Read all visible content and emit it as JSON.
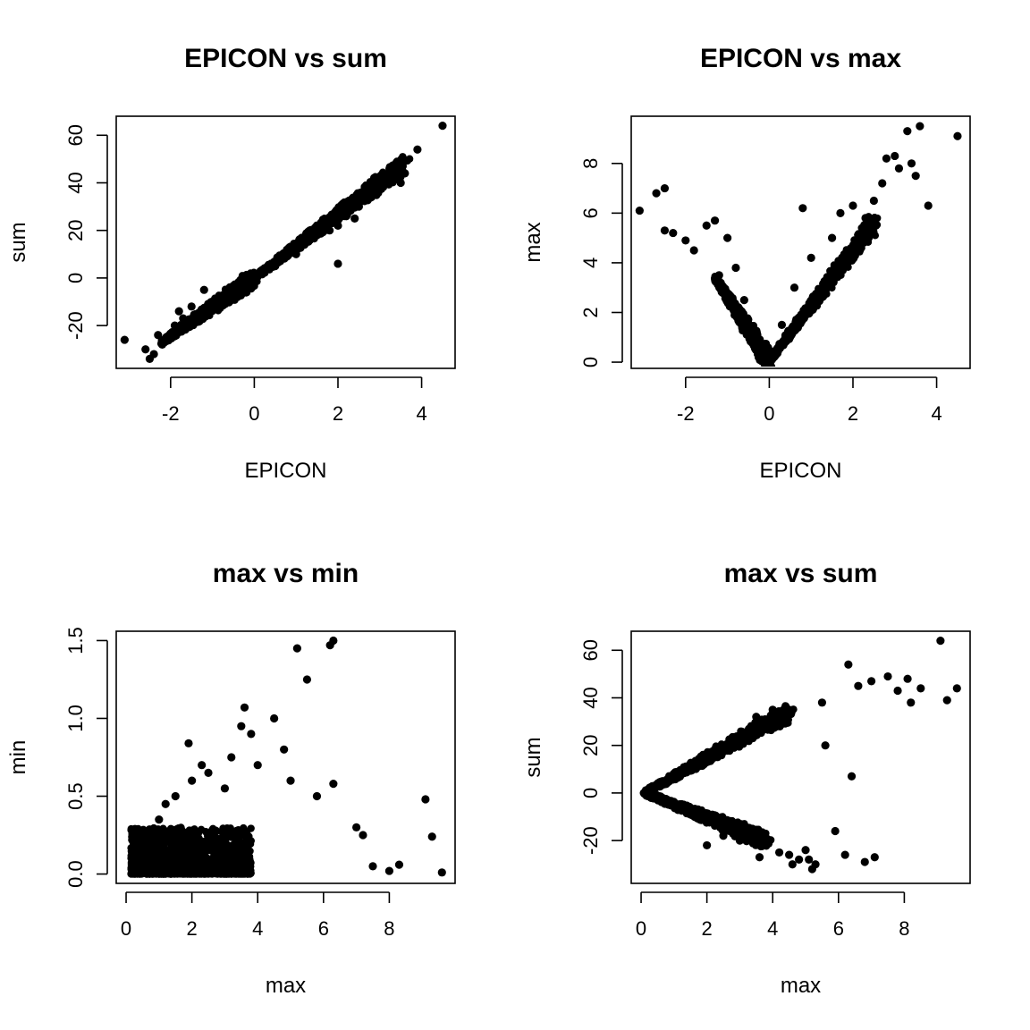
{
  "chart_data": [
    {
      "type": "scatter",
      "title": "EPICON vs sum",
      "xlabel": "EPICON",
      "ylabel": "sum",
      "xlim": [
        -3.3,
        4.8
      ],
      "ylim": [
        -38,
        68
      ],
      "xticks": [
        -2,
        0,
        2,
        4
      ],
      "yticks": [
        -20,
        0,
        20,
        40,
        60
      ],
      "xtick_labels": [
        "-2",
        "0",
        "2",
        "4"
      ],
      "ytick_labels": [
        "-20",
        "0",
        "20",
        "40",
        "60"
      ],
      "grid": false,
      "points": [
        [
          -3.1,
          -26
        ],
        [
          -2.6,
          -30
        ],
        [
          -2.5,
          -34
        ],
        [
          -2.4,
          -32
        ],
        [
          -2.3,
          -24
        ],
        [
          -2.2,
          -28
        ],
        [
          -2.1,
          -26
        ],
        [
          -2.0,
          -25
        ],
        [
          -1.9,
          -20
        ],
        [
          -1.8,
          -14
        ],
        [
          -1.7,
          -17
        ],
        [
          -1.6,
          -20
        ],
        [
          -1.5,
          -12
        ],
        [
          -1.4,
          -18
        ],
        [
          -1.3,
          -16
        ],
        [
          -1.2,
          -5
        ],
        [
          -1.0,
          -10
        ],
        [
          -0.8,
          -8
        ],
        [
          -0.5,
          -5
        ],
        [
          -0.2,
          -2
        ],
        [
          0,
          0
        ],
        [
          0.5,
          5
        ],
        [
          1,
          10
        ],
        [
          1.2,
          14
        ],
        [
          1.5,
          18
        ],
        [
          1.8,
          20
        ],
        [
          2.0,
          22
        ],
        [
          2.0,
          6
        ],
        [
          2.2,
          26
        ],
        [
          2.5,
          30
        ],
        [
          2.4,
          25
        ],
        [
          2.8,
          34
        ],
        [
          3.0,
          38
        ],
        [
          3.1,
          42
        ],
        [
          3.3,
          44
        ],
        [
          3.4,
          47
        ],
        [
          3.5,
          48
        ],
        [
          3.5,
          40
        ],
        [
          3.6,
          44
        ],
        [
          3.9,
          54
        ],
        [
          4.5,
          64
        ]
      ],
      "trend_segments": [
        [
          [
            -2.2,
            -27
          ],
          [
            0,
            0
          ]
        ],
        [
          [
            0,
            0
          ],
          [
            3.6,
            48
          ]
        ]
      ]
    },
    {
      "type": "scatter",
      "title": "EPICON vs max",
      "xlabel": "EPICON",
      "ylabel": "max",
      "xlim": [
        -3.3,
        4.8
      ],
      "ylim": [
        -0.25,
        9.9
      ],
      "xticks": [
        -2,
        0,
        2,
        4
      ],
      "yticks": [
        0,
        2,
        4,
        6,
        8
      ],
      "xtick_labels": [
        "-2",
        "0",
        "2",
        "4"
      ],
      "ytick_labels": [
        "0",
        "2",
        "4",
        "6",
        "8"
      ],
      "grid": false,
      "points": [
        [
          -3.1,
          6.1
        ],
        [
          -2.7,
          6.8
        ],
        [
          -2.5,
          7.0
        ],
        [
          -2.5,
          5.3
        ],
        [
          -2.3,
          5.2
        ],
        [
          -2.0,
          4.9
        ],
        [
          -1.8,
          4.5
        ],
        [
          -1.5,
          5.5
        ],
        [
          -1.3,
          5.7
        ],
        [
          -1.0,
          5.0
        ],
        [
          -1.2,
          3.5
        ],
        [
          -0.8,
          3.8
        ],
        [
          -0.6,
          2.5
        ],
        [
          -0.3,
          1.2
        ],
        [
          0,
          0.1
        ],
        [
          0.3,
          1.5
        ],
        [
          0.6,
          3.0
        ],
        [
          0.8,
          6.2
        ],
        [
          1.0,
          4.2
        ],
        [
          1.5,
          5.0
        ],
        [
          1.7,
          6.0
        ],
        [
          2.0,
          6.3
        ],
        [
          2.3,
          5.8
        ],
        [
          2.5,
          6.5
        ],
        [
          2.7,
          7.2
        ],
        [
          2.8,
          8.2
        ],
        [
          3.0,
          8.3
        ],
        [
          3.1,
          7.8
        ],
        [
          3.3,
          9.3
        ],
        [
          3.4,
          8.0
        ],
        [
          3.6,
          9.5
        ],
        [
          3.5,
          7.5
        ],
        [
          3.8,
          6.3
        ],
        [
          4.5,
          9.1
        ]
      ],
      "trend_segments": [
        [
          [
            -1.3,
            3.4
          ],
          [
            0,
            0.05
          ]
        ],
        [
          [
            0,
            0.05
          ],
          [
            2.5,
            5.6
          ]
        ]
      ]
    },
    {
      "type": "scatter",
      "title": "max vs min",
      "xlabel": "max",
      "ylabel": "min",
      "xlim": [
        -0.3,
        10.0
      ],
      "ylim": [
        -0.06,
        1.56
      ],
      "xticks": [
        0,
        2,
        4,
        6,
        8
      ],
      "yticks": [
        0.0,
        0.5,
        1.0,
        1.5
      ],
      "xtick_labels": [
        "0",
        "2",
        "4",
        "6",
        "8"
      ],
      "ytick_labels": [
        "0.0",
        "0.5",
        "1.0",
        "1.5"
      ],
      "grid": false,
      "points": [
        [
          0.3,
          0.02
        ],
        [
          0.8,
          0.2
        ],
        [
          1.0,
          0.35
        ],
        [
          1.2,
          0.45
        ],
        [
          1.5,
          0.5
        ],
        [
          1.9,
          0.84
        ],
        [
          2.0,
          0.6
        ],
        [
          2.3,
          0.7
        ],
        [
          2.5,
          0.65
        ],
        [
          3.0,
          0.55
        ],
        [
          3.2,
          0.75
        ],
        [
          3.5,
          0.95
        ],
        [
          3.6,
          1.07
        ],
        [
          3.8,
          0.9
        ],
        [
          4.0,
          0.7
        ],
        [
          4.5,
          1.0
        ],
        [
          4.8,
          0.8
        ],
        [
          5.0,
          0.6
        ],
        [
          5.2,
          1.45
        ],
        [
          5.5,
          1.25
        ],
        [
          5.8,
          0.5
        ],
        [
          6.2,
          1.47
        ],
        [
          6.3,
          1.5
        ],
        [
          6.3,
          0.58
        ],
        [
          7.0,
          0.3
        ],
        [
          7.2,
          0.25
        ],
        [
          7.5,
          0.05
        ],
        [
          8.0,
          0.02
        ],
        [
          8.3,
          0.06
        ],
        [
          9.1,
          0.48
        ],
        [
          9.3,
          0.24
        ],
        [
          9.6,
          0.01
        ]
      ],
      "dense_region": {
        "x": [
          0.15,
          3.8
        ],
        "y": [
          0.0,
          0.3
        ]
      }
    },
    {
      "type": "scatter",
      "title": "max vs sum",
      "xlabel": "max",
      "ylabel": "sum",
      "xlim": [
        -0.3,
        10.0
      ],
      "ylim": [
        -38,
        68
      ],
      "xticks": [
        0,
        2,
        4,
        6,
        8
      ],
      "yticks": [
        -20,
        0,
        20,
        40,
        60
      ],
      "xtick_labels": [
        "0",
        "2",
        "4",
        "6",
        "8"
      ],
      "ytick_labels": [
        "-20",
        "0",
        "20",
        "40",
        "60"
      ],
      "grid": false,
      "points": [
        [
          0.1,
          0
        ],
        [
          1.0,
          8
        ],
        [
          1.5,
          12
        ],
        [
          2.0,
          -22
        ],
        [
          2.5,
          -18
        ],
        [
          3.0,
          -20
        ],
        [
          3.2,
          22
        ],
        [
          3.5,
          32
        ],
        [
          3.6,
          -27
        ],
        [
          4.0,
          35
        ],
        [
          4.2,
          -25
        ],
        [
          4.5,
          -26
        ],
        [
          4.6,
          -30
        ],
        [
          4.8,
          -28
        ],
        [
          5.0,
          -24
        ],
        [
          5.1,
          -28
        ],
        [
          5.2,
          -32
        ],
        [
          5.3,
          -30
        ],
        [
          5.5,
          38
        ],
        [
          5.6,
          20
        ],
        [
          5.9,
          -16
        ],
        [
          6.2,
          -26
        ],
        [
          6.4,
          7
        ],
        [
          6.3,
          54
        ],
        [
          6.6,
          45
        ],
        [
          6.8,
          -29
        ],
        [
          7.1,
          -27
        ],
        [
          7.0,
          47
        ],
        [
          7.5,
          49
        ],
        [
          7.8,
          43
        ],
        [
          8.1,
          48
        ],
        [
          8.2,
          38
        ],
        [
          8.5,
          44
        ],
        [
          9.1,
          64
        ],
        [
          9.3,
          39
        ],
        [
          9.6,
          44
        ]
      ],
      "trend_segments": [
        [
          [
            0.1,
            0
          ],
          [
            4.5,
            34
          ]
        ],
        [
          [
            0.1,
            0
          ],
          [
            3.8,
            -20
          ]
        ]
      ]
    }
  ]
}
